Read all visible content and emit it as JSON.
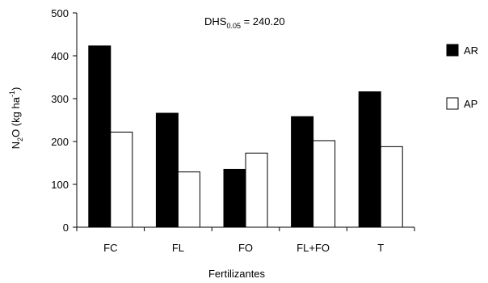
{
  "chart_data": {
    "type": "bar",
    "xlabel": "Fertilizantes",
    "ylabel_main": "N",
    "ylabel_sub": "2",
    "ylabel_rest": "O (kg ha",
    "ylabel_sup": "-1",
    "ylabel_close": ")",
    "annotation_main": "DHS",
    "annotation_sub": "0.05",
    "annotation_rest": " = 240.20",
    "categories": [
      "FC",
      "FL",
      "FO",
      "FL+FO",
      "T"
    ],
    "y_ticks": [
      "0",
      "100",
      "200",
      "300",
      "400",
      "500"
    ],
    "ylim": [
      0,
      500
    ],
    "grid": false,
    "legend_position": "right",
    "series": [
      {
        "name": "AR",
        "color": "#000000",
        "values": [
          423,
          266,
          135,
          258,
          316
        ]
      },
      {
        "name": "AP",
        "color": "#ffffff",
        "values": [
          222,
          129,
          173,
          202,
          188
        ]
      }
    ]
  }
}
